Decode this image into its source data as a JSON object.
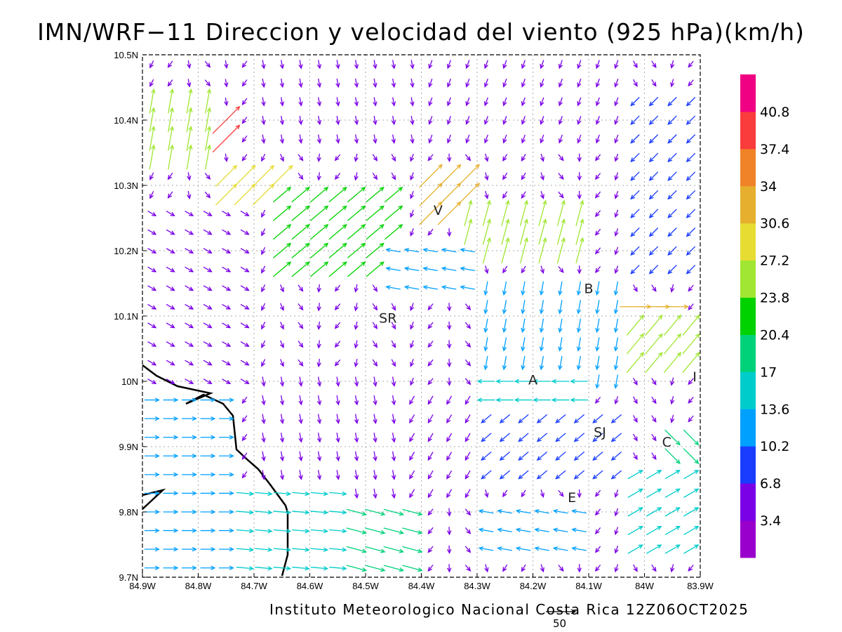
{
  "title": "IMN/WRF−11 Direccion y velocidad del viento (925 hPa)(km/h)",
  "footer": "Instituto Meteorologico Nacional Costa Rica 12Z06OCT2025",
  "reference_vector_label": "50",
  "axes": {
    "x_ticks": [
      "84.9W",
      "84.8W",
      "84.7W",
      "84.6W",
      "84.5W",
      "84.4W",
      "84.3W",
      "84.2W",
      "84.1W",
      "84W",
      "83.9W"
    ],
    "y_ticks": [
      "9.7N",
      "9.8N",
      "9.9N",
      "10N",
      "10.1N",
      "10.2N",
      "10.3N",
      "10.4N",
      "10.5N"
    ],
    "lon_range": [
      -84.9,
      -83.9
    ],
    "lat_range": [
      9.7,
      10.5
    ],
    "grid": true
  },
  "colorbar": {
    "labels": [
      "3.4",
      "6.8",
      "10.2",
      "13.6",
      "17",
      "20.4",
      "23.8",
      "27.2",
      "30.6",
      "34",
      "37.4",
      "40.8"
    ],
    "colors": [
      "#9a00cc",
      "#7a00e6",
      "#1a3cff",
      "#00a0ff",
      "#00cccc",
      "#00d27a",
      "#00d200",
      "#a0e632",
      "#e6dc32",
      "#e6af2d",
      "#f08228",
      "#fa3c3c",
      "#f00082"
    ]
  },
  "city_labels": [
    {
      "text": "V",
      "lon": -84.37,
      "lat": 10.255
    },
    {
      "text": "SR",
      "lon": -84.46,
      "lat": 10.09
    },
    {
      "text": "B",
      "lon": -84.1,
      "lat": 10.135
    },
    {
      "text": "A",
      "lon": -84.2,
      "lat": 9.995
    },
    {
      "text": "I",
      "lon": -83.91,
      "lat": 10.0
    },
    {
      "text": "SJ",
      "lon": -84.08,
      "lat": 9.915
    },
    {
      "text": "C",
      "lon": -83.96,
      "lat": 9.9
    },
    {
      "text": "E",
      "lon": -84.13,
      "lat": 9.815
    }
  ],
  "wind_regions": [
    {
      "lon": [
        -84.9,
        -84.75
      ],
      "lat": [
        9.7,
        9.98
      ],
      "dir": 0,
      "spd": 12
    },
    {
      "lon": [
        -84.75,
        -84.55
      ],
      "lat": [
        9.7,
        9.85
      ],
      "dir": -5,
      "spd": 15
    },
    {
      "lon": [
        -84.55,
        -84.4
      ],
      "lat": [
        9.7,
        9.8
      ],
      "dir": -15,
      "spd": 19
    },
    {
      "lon": [
        -84.7,
        -84.45
      ],
      "lat": [
        9.8,
        10.0
      ],
      "dir": -80,
      "spd": 6
    },
    {
      "lon": [
        -84.45,
        -84.3
      ],
      "lat": [
        9.8,
        9.98
      ],
      "dir": -120,
      "spd": 6
    },
    {
      "lon": [
        -84.3,
        -84.1
      ],
      "lat": [
        9.96,
        10.0
      ],
      "dir": 180,
      "spd": 15
    },
    {
      "lon": [
        -84.3,
        -84.05
      ],
      "lat": [
        9.84,
        9.95
      ],
      "dir": -140,
      "spd": 10
    },
    {
      "lon": [
        -84.3,
        -84.1
      ],
      "lat": [
        9.72,
        9.8
      ],
      "dir": 170,
      "spd": 12
    },
    {
      "lon": [
        -84.05,
        -83.9
      ],
      "lat": [
        9.72,
        9.88
      ],
      "dir": 30,
      "spd": 15
    },
    {
      "lon": [
        -83.97,
        -83.9
      ],
      "lat": [
        9.85,
        9.93
      ],
      "dir": -45,
      "spd": 20
    },
    {
      "lon": [
        -84.3,
        -84.05
      ],
      "lat": [
        10.0,
        10.16
      ],
      "dir": -100,
      "spd": 11
    },
    {
      "lon": [
        -84.05,
        -83.9
      ],
      "lat": [
        10.02,
        10.1
      ],
      "dir": 50,
      "spd": 26
    },
    {
      "lon": [
        -84.1,
        -83.95
      ],
      "lat": [
        10.1,
        10.12
      ],
      "dir": 0,
      "spd": 32
    },
    {
      "lon": [
        -84.05,
        -83.9
      ],
      "lat": [
        10.15,
        10.45
      ],
      "dir": -135,
      "spd": 9
    },
    {
      "lon": [
        -84.45,
        -84.3
      ],
      "lat": [
        10.12,
        10.2
      ],
      "dir": 170,
      "spd": 12
    },
    {
      "lon": [
        -84.65,
        -84.45
      ],
      "lat": [
        10.16,
        10.3
      ],
      "dir": 40,
      "spd": 22
    },
    {
      "lon": [
        -84.35,
        -84.1
      ],
      "lat": [
        10.2,
        10.28
      ],
      "dir": 75,
      "spd": 26
    },
    {
      "lon": [
        -84.4,
        -84.3
      ],
      "lat": [
        10.25,
        10.32
      ],
      "dir": 45,
      "spd": 33
    },
    {
      "lon": [
        -84.78,
        -84.65
      ],
      "lat": [
        10.26,
        10.34
      ],
      "dir": 45,
      "spd": 30
    },
    {
      "lon": [
        -84.9,
        -84.78
      ],
      "lat": [
        10.33,
        10.44
      ],
      "dir": 80,
      "spd": 24
    },
    {
      "lon": [
        -84.8,
        -84.75
      ],
      "lat": [
        10.36,
        10.4
      ],
      "dir": 45,
      "spd": 40
    },
    {
      "lon": [
        -84.7,
        -84.4
      ],
      "lat": [
        10.35,
        10.5
      ],
      "dir": -80,
      "spd": 5
    },
    {
      "lon": [
        -84.4,
        -84.05
      ],
      "lat": [
        10.35,
        10.5
      ],
      "dir": -110,
      "spd": 5
    },
    {
      "lon": [
        -84.9,
        -84.7
      ],
      "lat": [
        10.0,
        10.26
      ],
      "dir": -30,
      "spd": 6
    }
  ]
}
